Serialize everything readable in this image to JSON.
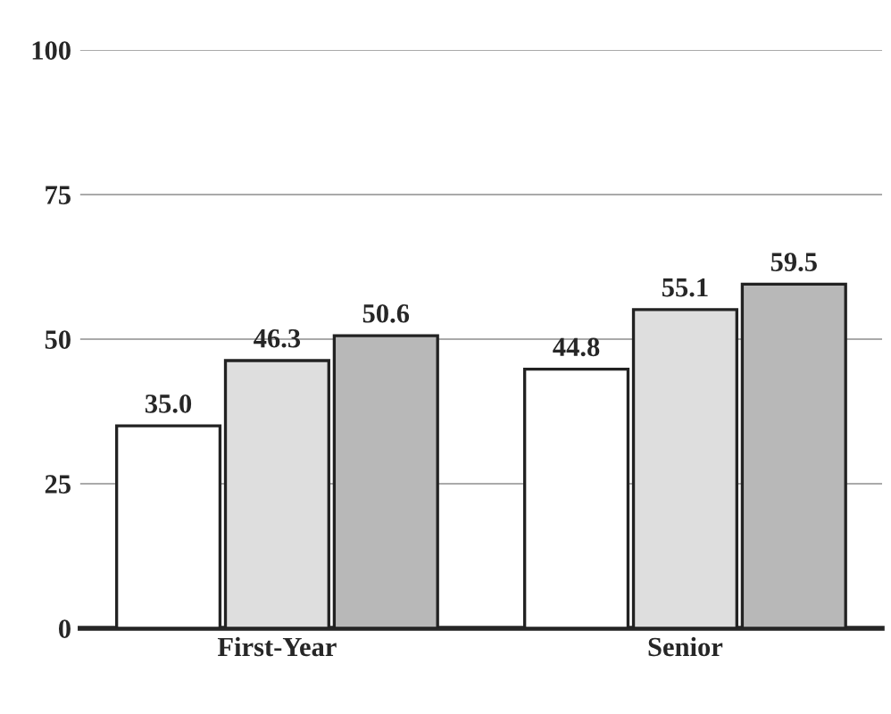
{
  "chart_data": {
    "type": "bar",
    "categories": [
      "First-Year",
      "Senior"
    ],
    "series": [
      {
        "color": "#ffffff",
        "values": [
          35.0,
          44.8
        ],
        "value_labels": [
          "35.0",
          "44.8"
        ]
      },
      {
        "color": "#dedede",
        "values": [
          46.3,
          55.1
        ],
        "value_labels": [
          "46.3",
          "55.1"
        ]
      },
      {
        "color": "#b8b8b8",
        "values": [
          50.6,
          59.5
        ],
        "value_labels": [
          "50.6",
          "59.5"
        ]
      }
    ],
    "ylim": [
      0,
      100
    ],
    "yticks": [
      0,
      25,
      50,
      75,
      100
    ],
    "grid": "y"
  }
}
